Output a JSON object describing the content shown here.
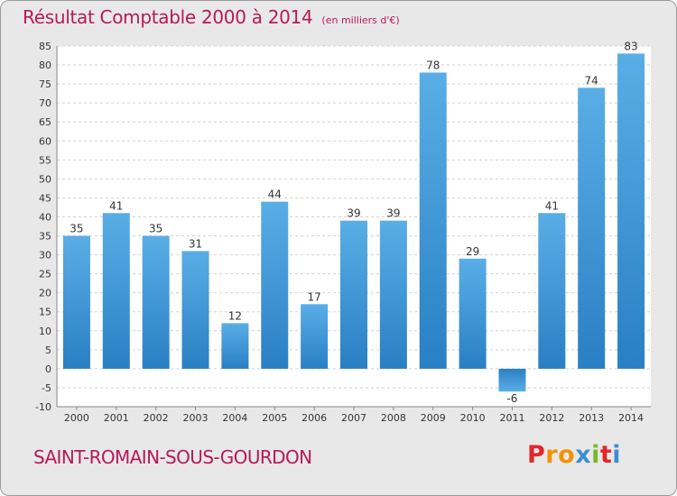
{
  "header": {
    "title": "Résultat Comptable 2000 à 2014",
    "unit": "(en milliers d'€)"
  },
  "footer": {
    "city": "SAINT-ROMAIN-SOUS-GOURDON",
    "logo": "Proxiti"
  },
  "colors": {
    "title": "#b8195a",
    "bar_light": "#5aaee6",
    "bar_dark": "#2a7fc4",
    "background": "#e8e8e8",
    "plot_background": "#ffffff",
    "logo_letters": [
      "#e3262b",
      "#f39200",
      "#f39200",
      "#3a8fd0",
      "#7ab929",
      "#e3262b",
      "#3a8fd0"
    ]
  },
  "chart_data": {
    "type": "bar",
    "categories": [
      "2000",
      "2001",
      "2002",
      "2003",
      "2004",
      "2005",
      "2006",
      "2007",
      "2008",
      "2009",
      "2010",
      "2011",
      "2012",
      "2013",
      "2014"
    ],
    "values": [
      35,
      41,
      35,
      31,
      12,
      44,
      17,
      39,
      39,
      78,
      29,
      -6,
      41,
      74,
      83
    ],
    "ylim": [
      -10,
      85
    ],
    "yticks": [
      -10,
      -5,
      0,
      5,
      10,
      15,
      20,
      25,
      30,
      35,
      40,
      45,
      50,
      55,
      60,
      65,
      70,
      75,
      80,
      85
    ],
    "grid": true,
    "data_labels": true
  }
}
